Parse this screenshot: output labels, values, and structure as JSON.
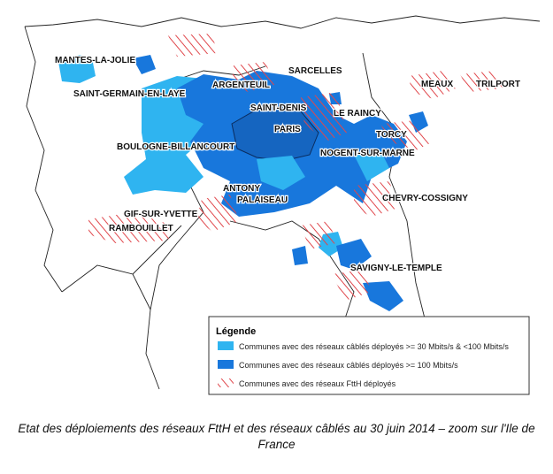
{
  "map": {
    "labels": [
      "MANTES-LA-JOLIE",
      "SAINT-GERMAIN-EN-LAYE",
      "ARGENTEUIL",
      "SARCELLES",
      "MEAUX",
      "TRILPORT",
      "SAINT-DENIS",
      "LE RAINCY",
      "PARIS",
      "TORCY",
      "BOULOGNE-BILLANCOURT",
      "NOGENT-SUR-MARNE",
      "ANTONY",
      "PALAISEAU",
      "CHEVRY-COSSIGNY",
      "GIF-SUR-YVETTE",
      "RAMBOUILLET",
      "SAVIGNY-LE-TEMPLE"
    ],
    "legend": {
      "title": "Légende",
      "items": [
        "Communes avec des réseaux câblés déployés >= 30 Mbits/s & <100 Mbits/s",
        "Communes avec des réseaux câblés déployés >= 100 Mbits/s",
        "Communes avec des réseaux FttH déployés"
      ]
    }
  },
  "caption": "Etat des déploiements des réseaux FttH et des réseaux câblés au 30 juin 2014 – zoom sur l'Ile de France"
}
